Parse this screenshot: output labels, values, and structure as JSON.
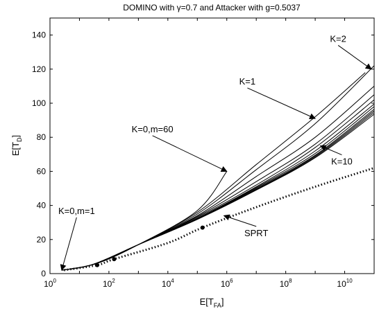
{
  "chart_data": {
    "type": "line",
    "title": {
      "before": "DOMINO with ",
      "greek": "γ",
      "after": "=0.7 and Attacker with g=0.5037"
    },
    "xlabel": {
      "base": "E[T",
      "sub": "FA",
      "close": "]"
    },
    "ylabel": {
      "base": "E[T",
      "sub": "D",
      "close": "]"
    },
    "x_scale": "log",
    "xlim": [
      1,
      100000000000.0
    ],
    "ylim": [
      0,
      150
    ],
    "x_ticks": [
      {
        "base": "10",
        "exp": "0",
        "value": 1
      },
      {
        "base": "10",
        "exp": "2",
        "value": 100
      },
      {
        "base": "10",
        "exp": "4",
        "value": 10000
      },
      {
        "base": "10",
        "exp": "6",
        "value": 1000000
      },
      {
        "base": "10",
        "exp": "8",
        "value": 100000000
      },
      {
        "base": "10",
        "exp": "10",
        "value": 10000000000
      }
    ],
    "y_ticks": [
      "0",
      "20",
      "40",
      "60",
      "80",
      "100",
      "120",
      "140"
    ],
    "grid": false,
    "series": [
      {
        "points": [
          [
            2.5,
            2
          ],
          [
            30,
            5.5
          ],
          [
            1000,
            17
          ],
          [
            100000,
            36
          ],
          [
            10000000,
            64
          ],
          [
            1000000000,
            92
          ],
          [
            50000000000,
            118
          ]
        ]
      },
      {
        "points": [
          [
            2.5,
            2
          ],
          [
            30,
            5.5
          ],
          [
            1000,
            17
          ],
          [
            100000,
            35
          ],
          [
            10000000,
            61
          ],
          [
            1000000000,
            88
          ],
          [
            100000000000,
            122
          ]
        ]
      },
      {
        "points": [
          [
            2.5,
            2
          ],
          [
            30,
            5.5
          ],
          [
            1000,
            17
          ],
          [
            100000,
            34
          ],
          [
            10000000,
            57
          ],
          [
            1000000000,
            80
          ],
          [
            100000000000,
            110
          ]
        ]
      },
      {
        "points": [
          [
            2.5,
            2
          ],
          [
            30,
            5.5
          ],
          [
            1000,
            17
          ],
          [
            100000,
            33.5
          ],
          [
            10000000,
            54
          ],
          [
            1000000000,
            76
          ],
          [
            100000000000,
            105
          ]
        ]
      },
      {
        "points": [
          [
            2.5,
            2
          ],
          [
            30,
            5.5
          ],
          [
            1000,
            17
          ],
          [
            100000,
            33
          ],
          [
            10000000,
            52
          ],
          [
            1000000000,
            74
          ],
          [
            100000000000,
            102
          ]
        ]
      },
      {
        "points": [
          [
            2.5,
            2
          ],
          [
            30,
            5.5
          ],
          [
            1000,
            17
          ],
          [
            100000,
            32.5
          ],
          [
            10000000,
            51
          ],
          [
            1000000000,
            72
          ],
          [
            100000000000,
            99.5
          ]
        ]
      },
      {
        "points": [
          [
            2.5,
            2
          ],
          [
            30,
            5.5
          ],
          [
            1000,
            17
          ],
          [
            100000,
            32.3
          ],
          [
            10000000,
            50.5
          ],
          [
            1000000000,
            70.5
          ],
          [
            100000000000,
            98
          ]
        ]
      },
      {
        "points": [
          [
            2.5,
            2
          ],
          [
            30,
            5.5
          ],
          [
            1000,
            17
          ],
          [
            100000,
            32.1
          ],
          [
            10000000,
            50
          ],
          [
            1000000000,
            69.5
          ],
          [
            100000000000,
            96.5
          ]
        ]
      },
      {
        "points": [
          [
            2.5,
            2
          ],
          [
            30,
            5.5
          ],
          [
            1000,
            17
          ],
          [
            100000,
            32
          ],
          [
            10000000,
            49.5
          ],
          [
            1000000000,
            69
          ],
          [
            100000000000,
            95.5
          ]
        ]
      },
      {
        "points": [
          [
            2.5,
            2
          ],
          [
            30,
            5.5
          ],
          [
            1000,
            17
          ],
          [
            100000,
            31.9
          ],
          [
            10000000,
            49.2
          ],
          [
            1000000000,
            68.5
          ],
          [
            100000000000,
            94.5
          ]
        ]
      },
      {
        "points": [
          [
            2.5,
            2
          ],
          [
            30,
            5.5
          ],
          [
            1000,
            17
          ],
          [
            100000,
            31.8
          ],
          [
            10000000,
            49
          ],
          [
            1000000000,
            68
          ],
          [
            100000000000,
            93.5
          ]
        ]
      },
      {
        "points": [
          [
            2.5,
            2
          ],
          [
            40,
            6
          ],
          [
            1000,
            17
          ],
          [
            100000,
            37
          ],
          [
            1000000,
            60
          ]
        ]
      }
    ],
    "sprt": {
      "name": "SPRT",
      "style": "dotted",
      "points": [
        [
          3,
          2
        ],
        [
          40,
          5
        ],
        [
          150,
          8.5
        ],
        [
          10000,
          18
        ],
        [
          150000,
          27
        ],
        [
          10000000,
          39
        ],
        [
          1000000000,
          51
        ],
        [
          100000000000,
          62
        ]
      ]
    },
    "markers": [
      {
        "x": 40,
        "y": 5
      },
      {
        "x": 150,
        "y": 8.5
      },
      {
        "x": 150000,
        "y": 27
      }
    ],
    "annotations": [
      {
        "text": "K=2",
        "text_x": 6000000000,
        "text_y": 136,
        "arrow_to": [
          80000000000,
          120
        ]
      },
      {
        "text": "K=1",
        "text_x": 5000000,
        "text_y": 111,
        "arrow_to": [
          1000000000,
          91
        ]
      },
      {
        "text": "K=0,m=60",
        "text_x": 3000,
        "text_y": 83,
        "arrow_to": [
          1000000,
          60
        ]
      },
      {
        "text": "K=10",
        "text_x": 8000000000,
        "text_y": 64,
        "arrow_to": [
          1500000000,
          75
        ]
      },
      {
        "text": "K=0,m=1",
        "text_x": 8,
        "text_y": 35,
        "arrow_to": [
          2.5,
          2
        ]
      },
      {
        "text": "SPRT",
        "text_x": 10000000,
        "text_y": 22,
        "arrow_to": [
          800000,
          34
        ]
      }
    ],
    "colors": {
      "line": "#000000",
      "background": "#ffffff"
    }
  }
}
